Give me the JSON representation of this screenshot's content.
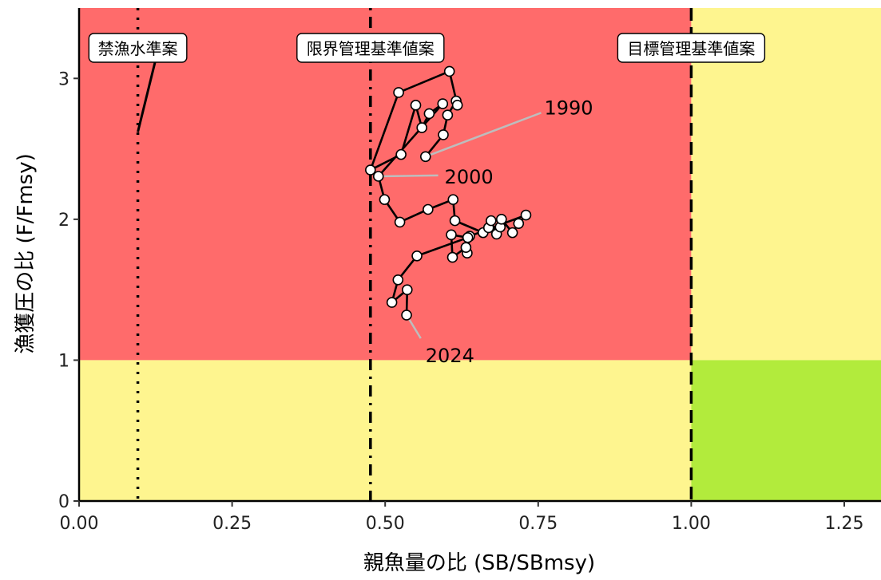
{
  "chart_data": {
    "type": "scatter",
    "xlabel": "親魚量の比 (SB/SBmsy)",
    "ylabel": "漁獲圧の比 (F/Fmsy)",
    "xlim": [
      0,
      1.31
    ],
    "ylim": [
      0,
      3.5
    ],
    "x_ticks": [
      {
        "value": 0,
        "label": "0.00"
      },
      {
        "value": 0.25,
        "label": "0.25"
      },
      {
        "value": 0.5,
        "label": "0.50"
      },
      {
        "value": 0.75,
        "label": "0.75"
      },
      {
        "value": 1.0,
        "label": "1.00"
      },
      {
        "value": 1.25,
        "label": "1.25"
      }
    ],
    "y_ticks": [
      {
        "value": 0,
        "label": "0"
      },
      {
        "value": 1,
        "label": "1"
      },
      {
        "value": 2,
        "label": "2"
      },
      {
        "value": 3,
        "label": "3"
      }
    ],
    "grid": false,
    "colors": {
      "red_zone": "#ff6b6b",
      "yellow_zone": "#fef58f",
      "green_zone": "#b2eb3c",
      "path": "#000000",
      "point_fill": "#ffffff",
      "leader": "#bdbdbd"
    },
    "zones": [
      {
        "name": "red",
        "x": [
          0,
          1.0
        ],
        "y": [
          1,
          3.5
        ]
      },
      {
        "name": "yellow",
        "x": [
          1.0,
          1.31
        ],
        "y": [
          1,
          3.5
        ]
      },
      {
        "name": "yellow",
        "x": [
          0,
          1.0
        ],
        "y": [
          0,
          1
        ]
      },
      {
        "name": "green",
        "x": [
          1.0,
          1.31
        ],
        "y": [
          0,
          1
        ]
      }
    ],
    "reference_lines": [
      {
        "label": "禁漁水準案",
        "x": 0.096,
        "style": "dotted"
      },
      {
        "label": "限界管理基準値案",
        "x": 0.476,
        "style": "dotdash"
      },
      {
        "label": "目標管理基準値案",
        "x": 1.0,
        "style": "dashed"
      }
    ],
    "hcr_segment": [
      {
        "x": 0.096,
        "y": 2.62
      },
      {
        "x": 0.13,
        "y": 3.22
      }
    ],
    "series": [
      {
        "points": [
          {
            "x": 0.566,
            "y": 2.445
          },
          {
            "x": 0.595,
            "y": 2.6
          },
          {
            "x": 0.602,
            "y": 2.74
          },
          {
            "x": 0.616,
            "y": 2.84
          },
          {
            "x": 0.618,
            "y": 2.81
          },
          {
            "x": 0.605,
            "y": 3.05
          },
          {
            "x": 0.522,
            "y": 2.9
          },
          {
            "x": 0.476,
            "y": 2.35
          },
          {
            "x": 0.526,
            "y": 2.46
          },
          {
            "x": 0.55,
            "y": 2.81
          },
          {
            "x": 0.56,
            "y": 2.65
          },
          {
            "x": 0.572,
            "y": 2.75
          },
          {
            "x": 0.594,
            "y": 2.82
          },
          {
            "x": 0.489,
            "y": 2.305
          },
          {
            "x": 0.499,
            "y": 2.14
          },
          {
            "x": 0.524,
            "y": 1.98
          },
          {
            "x": 0.57,
            "y": 2.07
          },
          {
            "x": 0.611,
            "y": 2.14
          },
          {
            "x": 0.614,
            "y": 1.99
          },
          {
            "x": 0.66,
            "y": 1.905
          },
          {
            "x": 0.669,
            "y": 1.94
          },
          {
            "x": 0.673,
            "y": 1.99
          },
          {
            "x": 0.682,
            "y": 1.895
          },
          {
            "x": 0.688,
            "y": 1.945
          },
          {
            "x": 0.69,
            "y": 2.0
          },
          {
            "x": 0.708,
            "y": 1.905
          },
          {
            "x": 0.718,
            "y": 1.97
          },
          {
            "x": 0.73,
            "y": 2.03
          },
          {
            "x": 0.638,
            "y": 1.88
          },
          {
            "x": 0.634,
            "y": 1.76
          },
          {
            "x": 0.632,
            "y": 1.8
          },
          {
            "x": 0.61,
            "y": 1.73
          },
          {
            "x": 0.608,
            "y": 1.89
          },
          {
            "x": 0.635,
            "y": 1.87
          },
          {
            "x": 0.552,
            "y": 1.74
          },
          {
            "x": 0.521,
            "y": 1.57
          },
          {
            "x": 0.511,
            "y": 1.41
          },
          {
            "x": 0.536,
            "y": 1.5
          },
          {
            "x": 0.535,
            "y": 1.32
          }
        ]
      }
    ],
    "annotations": [
      {
        "text": "1990",
        "x": 0.76,
        "y": 2.79,
        "point_x": 0.566,
        "point_y": 2.445
      },
      {
        "text": "2000",
        "x": 0.597,
        "y": 2.3,
        "point_x": 0.489,
        "point_y": 2.305
      },
      {
        "text": "2024",
        "x": 0.566,
        "y": 1.03,
        "point_x": 0.535,
        "point_y": 1.32
      }
    ]
  }
}
